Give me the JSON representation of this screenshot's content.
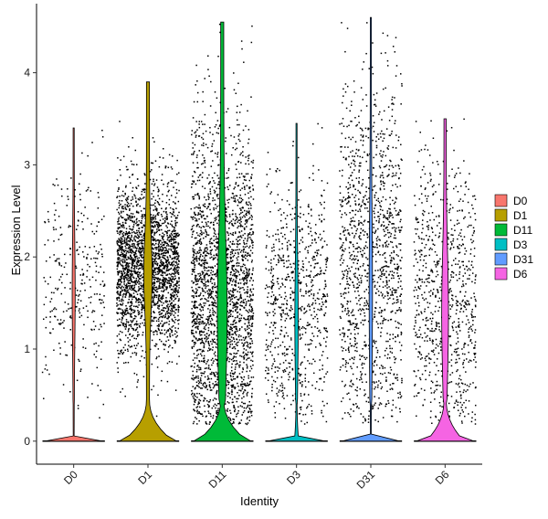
{
  "chart_data": {
    "type": "violin",
    "xlabel": "Identity",
    "ylabel": "Expression Level",
    "ylim": [
      -0.25,
      4.75
    ],
    "yticks": [
      0,
      1,
      2,
      3,
      4
    ],
    "grid": false,
    "legend_position": "right",
    "categories": [
      "D0",
      "D1",
      "D11",
      "D3",
      "D31",
      "D6"
    ],
    "series": [
      {
        "name": "D0",
        "color": "#F8766D",
        "max": 3.4,
        "zero_fraction": 0.99,
        "nonzero_center": 1.8,
        "nonzero_spread": 0.65,
        "points": 350
      },
      {
        "name": "D1",
        "color": "#B79F00",
        "max": 3.9,
        "zero_fraction": 0.4,
        "nonzero_center": 1.9,
        "nonzero_spread": 0.45,
        "points": 2600
      },
      {
        "name": "D11",
        "color": "#00BA38",
        "max": 4.55,
        "zero_fraction": 0.4,
        "nonzero_center": 1.6,
        "nonzero_spread": 0.9,
        "points": 2600
      },
      {
        "name": "D3",
        "color": "#00BFC4",
        "max": 3.45,
        "zero_fraction": 0.95,
        "nonzero_center": 1.5,
        "nonzero_spread": 0.7,
        "points": 900
      },
      {
        "name": "D31",
        "color": "#619CFF",
        "max": 4.6,
        "zero_fraction": 0.99,
        "nonzero_center": 1.9,
        "nonzero_spread": 1.0,
        "points": 1500
      },
      {
        "name": "D6",
        "color": "#F564E3",
        "max": 3.5,
        "zero_fraction": 0.55,
        "nonzero_center": 1.6,
        "nonzero_spread": 0.75,
        "points": 900
      }
    ]
  }
}
